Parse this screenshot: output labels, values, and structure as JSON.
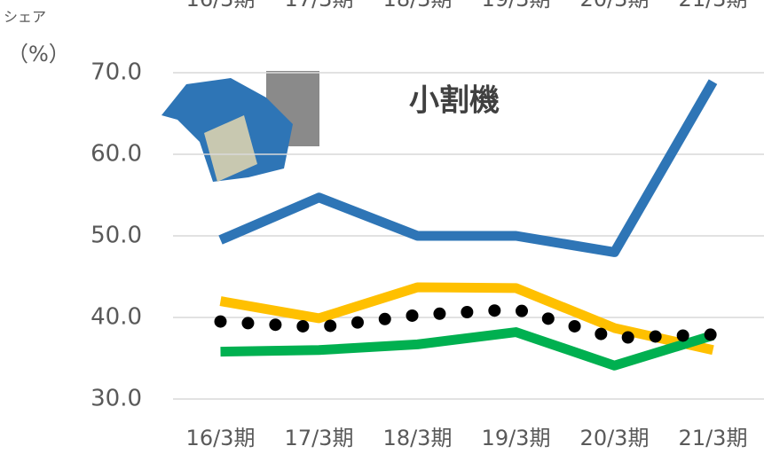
{
  "chart_data": {
    "type": "line",
    "y_label": "シェア",
    "y_unit": "（%）",
    "annotation": "小割機",
    "categories": [
      "16/3期",
      "17/3期",
      "18/3期",
      "19/3期",
      "20/3期",
      "21/3期"
    ],
    "series": [
      {
        "color": "#2e75b6",
        "style": "solid",
        "values": [
          49.5,
          54.7,
          50.0,
          50.0,
          48.0,
          68.9
        ]
      },
      {
        "color": "#ffc000",
        "style": "solid",
        "values": [
          42.0,
          39.9,
          43.7,
          43.6,
          38.7,
          36.0
        ]
      },
      {
        "color": "#00b050",
        "style": "solid",
        "values": [
          35.8,
          36.0,
          36.7,
          38.2,
          34.1,
          37.8
        ]
      },
      {
        "color": "#000000",
        "style": "dotted",
        "values": [
          39.5,
          38.8,
          40.3,
          41.0,
          37.5,
          37.9
        ]
      }
    ],
    "ylim": [
      30,
      70
    ],
    "yticks": [
      {
        "value": 30,
        "label": "30.0"
      },
      {
        "value": 40,
        "label": "40.0"
      },
      {
        "value": 50,
        "label": "50.0"
      },
      {
        "value": 60,
        "label": "60.0"
      },
      {
        "value": 70,
        "label": "70.0"
      }
    ],
    "grid": true
  }
}
